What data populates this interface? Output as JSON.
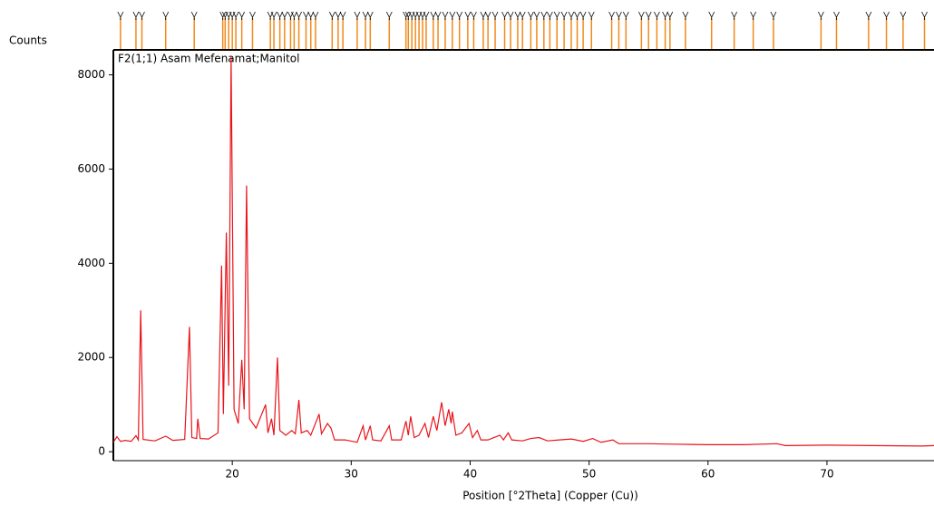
{
  "chart_data": {
    "type": "line",
    "annotation": "F2(1;1) Asam Mefenamat;Manitol",
    "y_label": "Counts",
    "x_label": "Position [°2Theta] (Copper (Cu))",
    "xlim": [
      10,
      79
    ],
    "ylim": [
      -190,
      8530
    ],
    "xticks": [
      20,
      30,
      40,
      50,
      60,
      70
    ],
    "yticks": [
      0,
      2000,
      4000,
      6000,
      8000
    ],
    "x": [
      10.0,
      10.3,
      10.6,
      11.0,
      11.5,
      11.9,
      12.1,
      12.3,
      12.5,
      13.5,
      14.4,
      15.0,
      16.0,
      16.4,
      16.6,
      17.0,
      17.1,
      17.3,
      18.0,
      18.8,
      19.1,
      19.25,
      19.5,
      19.7,
      19.9,
      20.15,
      20.5,
      20.8,
      21.0,
      21.2,
      21.45,
      22.0,
      22.8,
      23.0,
      23.3,
      23.5,
      23.8,
      24.0,
      24.5,
      25.0,
      25.3,
      25.6,
      25.8,
      26.3,
      26.6,
      27.3,
      27.5,
      28.0,
      28.3,
      28.6,
      29.5,
      30.5,
      31.0,
      31.2,
      31.6,
      31.8,
      32.5,
      33.2,
      33.4,
      34.2,
      34.6,
      34.8,
      35.0,
      35.3,
      35.7,
      36.2,
      36.5,
      36.9,
      37.2,
      37.6,
      37.9,
      38.2,
      38.4,
      38.5,
      38.8,
      39.3,
      39.9,
      40.2,
      40.6,
      40.9,
      41.5,
      42.0,
      42.5,
      42.8,
      43.2,
      43.5,
      44.4,
      45.1,
      45.8,
      46.5,
      47.5,
      48.5,
      49.5,
      50.3,
      51.0,
      52.0,
      52.5,
      55,
      57,
      60,
      63,
      65.8,
      66.5,
      70,
      74,
      78,
      79
    ],
    "series": [
      {
        "color": "#e8141b",
        "values": [
          200,
          320,
          220,
          240,
          220,
          340,
          250,
          3000,
          260,
          230,
          330,
          240,
          260,
          2650,
          300,
          280,
          700,
          280,
          270,
          400,
          3950,
          800,
          4650,
          1400,
          8400,
          900,
          600,
          1950,
          900,
          5650,
          700,
          500,
          1000,
          400,
          700,
          350,
          2000,
          450,
          350,
          450,
          380,
          1100,
          400,
          450,
          350,
          800,
          380,
          600,
          500,
          250,
          250,
          200,
          550,
          250,
          550,
          250,
          230,
          550,
          250,
          250,
          650,
          350,
          750,
          300,
          350,
          600,
          300,
          750,
          450,
          1050,
          550,
          900,
          600,
          850,
          350,
          400,
          600,
          300,
          450,
          250,
          250,
          300,
          350,
          250,
          400,
          250,
          230,
          280,
          300,
          230,
          250,
          270,
          220,
          280,
          200,
          250,
          170,
          170,
          160,
          150,
          150,
          170,
          130,
          140,
          130,
          120,
          130
        ]
      }
    ],
    "reference_peaks": {
      "color": "#f08a1c",
      "x": [
        10.6,
        11.9,
        12.4,
        14.4,
        16.8,
        19.2,
        19.4,
        19.7,
        20.0,
        20.3,
        20.8,
        21.7,
        23.2,
        23.5,
        24.0,
        24.4,
        24.9,
        25.2,
        25.6,
        26.2,
        26.6,
        27.0,
        28.4,
        28.9,
        29.3,
        30.5,
        31.2,
        31.6,
        33.2,
        34.6,
        34.8,
        35.1,
        35.4,
        35.7,
        36.0,
        36.3,
        36.9,
        37.3,
        37.9,
        38.5,
        39.1,
        39.8,
        40.3,
        41.1,
        41.5,
        42.1,
        42.9,
        43.4,
        44.0,
        44.4,
        45.1,
        45.6,
        46.2,
        46.7,
        47.3,
        47.9,
        48.5,
        49.0,
        49.5,
        50.2,
        51.9,
        52.5,
        53.1,
        54.4,
        55.0,
        55.7,
        56.4,
        56.8,
        58.1,
        60.3,
        62.2,
        63.8,
        65.5,
        69.5,
        70.8,
        73.5,
        75.0,
        76.4,
        78.2
      ]
    }
  }
}
